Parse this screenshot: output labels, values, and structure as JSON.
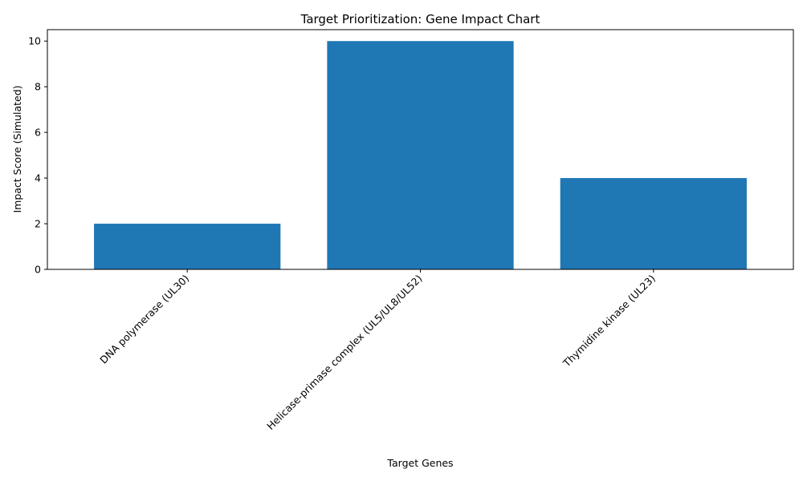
{
  "chart_data": {
    "type": "bar",
    "title": "Target Prioritization: Gene Impact Chart",
    "xlabel": "Target Genes",
    "ylabel": "Impact Score (Simulated)",
    "categories": [
      "DNA polymerase (UL30)",
      "Helicase-primase complex (UL5/UL8/UL52)",
      "Thymidine kinase (UL23)"
    ],
    "values": [
      2,
      10,
      4
    ],
    "ylim": [
      0,
      10.5
    ],
    "yticks": [
      0,
      2,
      4,
      6,
      8,
      10
    ],
    "grid": false,
    "legend": "none",
    "bar_color": "#1f77b4"
  }
}
